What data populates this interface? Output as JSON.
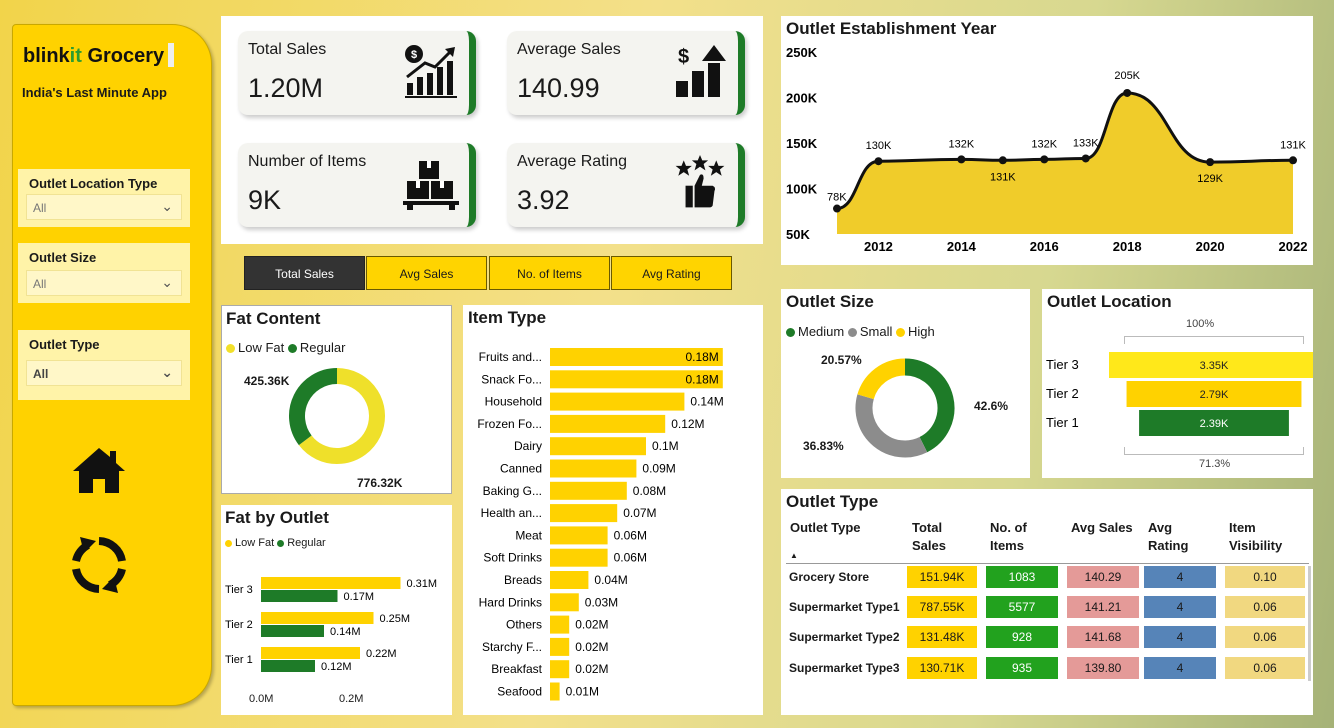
{
  "sidebar": {
    "brand_a": "blink",
    "brand_b": "it",
    "brand_c": " Grocery",
    "tagline": "India's Last Minute App",
    "slicers": [
      {
        "title": "Outlet Location Type",
        "value": "All"
      },
      {
        "title": "Outlet Size",
        "value": "All"
      },
      {
        "title": "Outlet Type",
        "value": "All"
      }
    ],
    "icons": [
      "home-icon",
      "refresh-icon"
    ]
  },
  "kpis": [
    {
      "label": "Total Sales",
      "value": "1.20M",
      "icon": "sales-growth-icon"
    },
    {
      "label": "Average Sales",
      "value": "140.99",
      "icon": "dollar-bars-icon"
    },
    {
      "label": "Number of Items",
      "value": "9K",
      "icon": "boxes-icon"
    },
    {
      "label": "Average Rating",
      "value": "3.92",
      "icon": "stars-thumb-icon"
    }
  ],
  "buttons": [
    "Total Sales",
    "Avg Sales",
    "No. of Items",
    "Avg Rating"
  ],
  "colors": {
    "yellow": "#ffd200",
    "green": "#1e7b28",
    "grey": "#8c8c8c",
    "area": "#f0cc2a"
  },
  "fat_content": {
    "title": "Fat Content",
    "legend": [
      "Low Fat",
      "Regular"
    ],
    "low_label": "776.32K",
    "reg_label": "425.36K"
  },
  "fat_by_outlet": {
    "title": "Fat by Outlet",
    "legend": [
      "Low Fat",
      "Regular"
    ],
    "axis": [
      "0.0M",
      "0.2M"
    ]
  },
  "item_type": {
    "title": "Item Type"
  },
  "establishment": {
    "title": "Outlet Establishment Year"
  },
  "outlet_size": {
    "title": "Outlet Size",
    "legend": [
      "Medium",
      "Small",
      "High"
    ],
    "labels": [
      "42.6%",
      "36.83%",
      "20.57%"
    ]
  },
  "outlet_location": {
    "title": "Outlet Location",
    "top": "100%",
    "bottom": "71.3%"
  },
  "outlet_type": {
    "title": "Outlet Type",
    "headers": [
      "Outlet Type",
      "Total Sales",
      "No. of Items",
      "Avg Sales",
      "Avg Rating",
      "Item Visibility"
    ],
    "rows": [
      [
        "Grocery Store",
        "151.94K",
        "1083",
        "140.29",
        "4",
        "0.10"
      ],
      [
        "Supermarket Type1",
        "787.55K",
        "5577",
        "141.21",
        "4",
        "0.06"
      ],
      [
        "Supermarket Type2",
        "131.48K",
        "928",
        "141.68",
        "4",
        "0.06"
      ],
      [
        "Supermarket Type3",
        "130.71K",
        "935",
        "139.80",
        "4",
        "0.06"
      ]
    ]
  },
  "chart_data": [
    {
      "type": "pie",
      "title": "Fat Content",
      "categories": [
        "Low Fat",
        "Regular"
      ],
      "values": [
        776.32,
        425.36
      ],
      "unit": "K"
    },
    {
      "type": "bar",
      "title": "Fat by Outlet",
      "categories": [
        "Tier 3",
        "Tier 2",
        "Tier 1"
      ],
      "series": [
        {
          "name": "Low Fat",
          "values": [
            0.31,
            0.25,
            0.22
          ],
          "labels": [
            "0.31M",
            "0.25M",
            "0.22M"
          ]
        },
        {
          "name": "Regular",
          "values": [
            0.17,
            0.14,
            0.12
          ],
          "labels": [
            "0.17M",
            "0.14M",
            "0.12M"
          ]
        }
      ],
      "xlim": [
        0,
        0.35
      ]
    },
    {
      "type": "bar",
      "title": "Item Type",
      "categories": [
        "Fruits and...",
        "Snack Fo...",
        "Household",
        "Frozen Fo...",
        "Dairy",
        "Canned",
        "Baking G...",
        "Health an...",
        "Meat",
        "Soft Drinks",
        "Breads",
        "Hard Drinks",
        "Others",
        "Starchy F...",
        "Breakfast",
        "Seafood"
      ],
      "values": [
        0.18,
        0.18,
        0.14,
        0.12,
        0.1,
        0.09,
        0.08,
        0.07,
        0.06,
        0.06,
        0.04,
        0.03,
        0.02,
        0.02,
        0.02,
        0.01
      ],
      "labels": [
        "0.18M",
        "0.18M",
        "0.14M",
        "0.12M",
        "0.1M",
        "0.09M",
        "0.08M",
        "0.07M",
        "0.06M",
        "0.06M",
        "0.04M",
        "0.03M",
        "0.02M",
        "0.02M",
        "0.02M",
        "0.01M"
      ]
    },
    {
      "type": "area",
      "title": "Outlet Establishment Year",
      "x": [
        2011,
        2012,
        2014,
        2015,
        2016,
        2017,
        2018,
        2020,
        2022
      ],
      "values": [
        78,
        130,
        132,
        131,
        132,
        133,
        205,
        129,
        131
      ],
      "labels": [
        "78K",
        "130K",
        "132K",
        "131K",
        "132K",
        "133K",
        "205K",
        "129K",
        "131K"
      ],
      "yticks": [
        "50K",
        "100K",
        "150K",
        "200K",
        "250K"
      ],
      "xticks": [
        "2012",
        "2014",
        "2016",
        "2018",
        "2020",
        "2022"
      ],
      "ylim": [
        50,
        250
      ]
    },
    {
      "type": "pie",
      "title": "Outlet Size",
      "categories": [
        "Medium",
        "Small",
        "High"
      ],
      "values": [
        42.6,
        36.83,
        20.57
      ]
    },
    {
      "type": "bar",
      "title": "Outlet Location",
      "categories": [
        "Tier 3",
        "Tier 2",
        "Tier 1"
      ],
      "values": [
        3.35,
        2.79,
        2.39
      ],
      "labels": [
        "3.35K",
        "2.79K",
        "2.39K"
      ]
    }
  ]
}
